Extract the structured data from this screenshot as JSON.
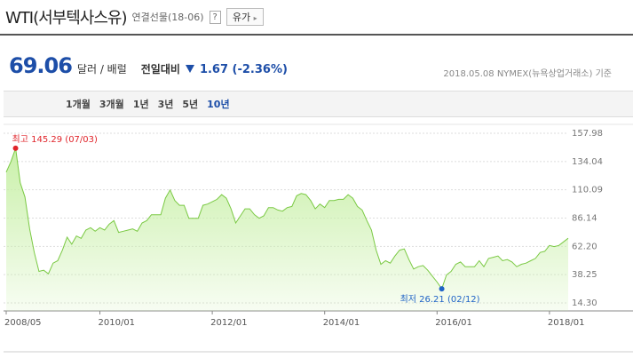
{
  "header": {
    "title": "WTI(서부텍사스유)",
    "contract": "연결선물(18-06)",
    "help": "?",
    "button": "유가"
  },
  "price": {
    "value": "69.06",
    "unit": "달러 / 배럴",
    "change_label": "전일대비",
    "change": "1.67 (-2.36%)",
    "date_source": "2018.05.08 NYMEX(뉴욕상업거래소) 기준"
  },
  "tabs": [
    "1개월",
    "3개월",
    "1년",
    "3년",
    "5년",
    "10년"
  ],
  "selected_tab": 5,
  "chart_data": {
    "type": "area",
    "color": "#7ac943",
    "fill": "#c9f0a9",
    "grid": true,
    "x": [
      "2008/05",
      "2008/06",
      "2008/07",
      "2008/08",
      "2008/09",
      "2008/10",
      "2008/11",
      "2008/12",
      "2009/01",
      "2009/02",
      "2009/03",
      "2009/04",
      "2009/05",
      "2009/06",
      "2009/07",
      "2009/08",
      "2009/09",
      "2009/10",
      "2009/11",
      "2009/12",
      "2010/01",
      "2010/02",
      "2010/03",
      "2010/04",
      "2010/05",
      "2010/06",
      "2010/07",
      "2010/08",
      "2010/09",
      "2010/10",
      "2010/11",
      "2010/12",
      "2011/01",
      "2011/02",
      "2011/03",
      "2011/04",
      "2011/05",
      "2011/06",
      "2011/07",
      "2011/08",
      "2011/09",
      "2011/10",
      "2011/11",
      "2011/12",
      "2012/01",
      "2012/02",
      "2012/03",
      "2012/04",
      "2012/05",
      "2012/06",
      "2012/07",
      "2012/08",
      "2012/09",
      "2012/10",
      "2012/11",
      "2012/12",
      "2013/01",
      "2013/02",
      "2013/03",
      "2013/04",
      "2013/05",
      "2013/06",
      "2013/07",
      "2013/08",
      "2013/09",
      "2013/10",
      "2013/11",
      "2013/12",
      "2014/01",
      "2014/02",
      "2014/03",
      "2014/04",
      "2014/05",
      "2014/06",
      "2014/07",
      "2014/08",
      "2014/09",
      "2014/10",
      "2014/11",
      "2014/12",
      "2015/01",
      "2015/02",
      "2015/03",
      "2015/04",
      "2015/05",
      "2015/06",
      "2015/07",
      "2015/08",
      "2015/09",
      "2015/10",
      "2015/11",
      "2015/12",
      "2016/01",
      "2016/02",
      "2016/03",
      "2016/04",
      "2016/05",
      "2016/06",
      "2016/07",
      "2016/08",
      "2016/09",
      "2016/10",
      "2016/11",
      "2016/12",
      "2017/01",
      "2017/02",
      "2017/03",
      "2017/04",
      "2017/05",
      "2017/06",
      "2017/07",
      "2017/08",
      "2017/09",
      "2017/10",
      "2017/11",
      "2017/12",
      "2018/01",
      "2018/02",
      "2018/03",
      "2018/04",
      "2018/05"
    ],
    "values": [
      125,
      134,
      145.29,
      116,
      104,
      77,
      57,
      41,
      42,
      39,
      48,
      50,
      59,
      70,
      64,
      71,
      69,
      76,
      78,
      75,
      78,
      76,
      81,
      84,
      74,
      75,
      76,
      77,
      75,
      82,
      84,
      89,
      89,
      89,
      103,
      110,
      101,
      97,
      97,
      86,
      86,
      86,
      97,
      98,
      100,
      102,
      106,
      103,
      94,
      82,
      88,
      94,
      94,
      89,
      86,
      88,
      95,
      95,
      93,
      92,
      95,
      96,
      105,
      107,
      106,
      101,
      94,
      98,
      95,
      101,
      101,
      102,
      102,
      106,
      103,
      96,
      93,
      84,
      76,
      59,
      47,
      50,
      48,
      54,
      59,
      60,
      51,
      43,
      45,
      46,
      42,
      37,
      32,
      26.21,
      38,
      41,
      47,
      49,
      45,
      45,
      45,
      50,
      45,
      52,
      53,
      54,
      50,
      51,
      49,
      45,
      47,
      48,
      50,
      52,
      57,
      58,
      63,
      62,
      63,
      66,
      69.06
    ],
    "ylim": [
      14.3,
      157.98
    ],
    "yticks": [
      {
        "value": 14.3,
        "label": "14.30"
      },
      38.25,
      {
        "value": 62.2,
        "label": "62.20"
      },
      86.14,
      110.09,
      134.04,
      157.98
    ],
    "annotations": [
      {
        "text": "최고 145.29 (07/03)",
        "index": 2,
        "value": 145.29,
        "color": "#e0242a"
      },
      {
        "text": "최저 26.21 (02/12)",
        "index": 93,
        "value": 26.21,
        "color": "#1f63c6"
      }
    ]
  }
}
